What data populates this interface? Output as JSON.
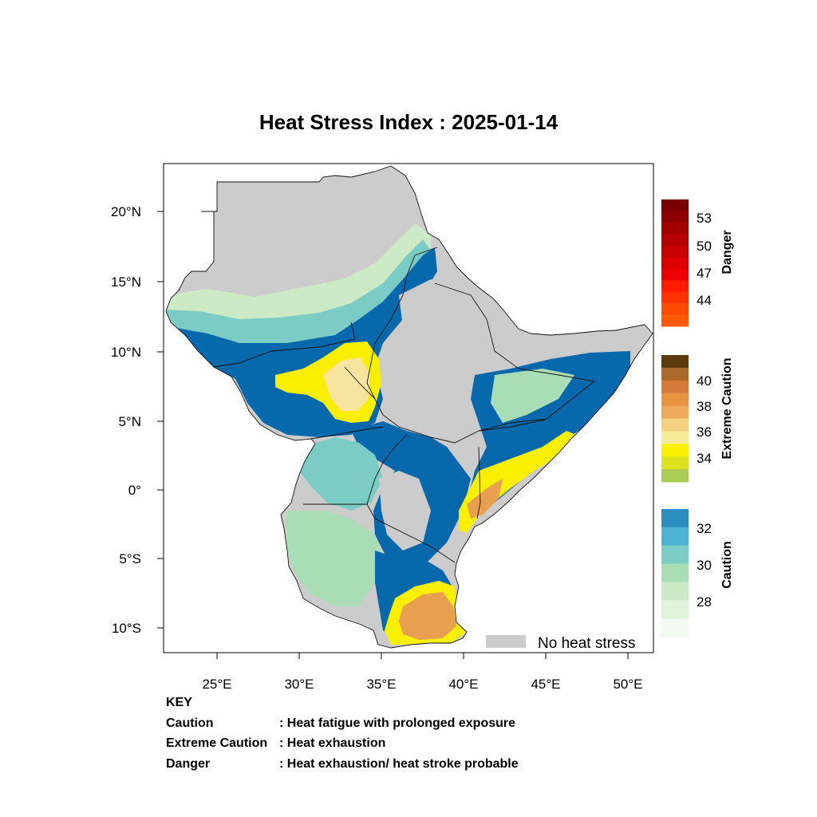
{
  "title": "Heat Stress Index : 2025-01-14",
  "axes": {
    "lon_ticks": [
      "25°E",
      "30°E",
      "35°E",
      "40°E",
      "45°E",
      "50°E"
    ],
    "lat_ticks": [
      "20°N",
      "15°N",
      "10°N",
      "5°N",
      "0°",
      "5°S",
      "10°S"
    ]
  },
  "no_stress_label": "No heat stress",
  "legend": {
    "danger": {
      "title": "Danger",
      "labels": [
        "53",
        "50",
        "47",
        "44"
      ],
      "colors": [
        "#7a0000",
        "#8e0000",
        "#a20000",
        "#b50000",
        "#c90000",
        "#dc0000",
        "#ee0000",
        "#ff1a00",
        "#ff3300",
        "#ff4a00",
        "#ff5a00"
      ]
    },
    "extreme": {
      "title": "Extreme Caution",
      "labels": [
        "40",
        "38",
        "36",
        "34"
      ],
      "colors": [
        "#5c3a0c",
        "#a8692a",
        "#d67a3a",
        "#e89244",
        "#eeaa5a",
        "#f5d280",
        "#f7ea9a",
        "#f9f000",
        "#dfe31e",
        "#aacc55"
      ]
    },
    "caution": {
      "title": "Caution",
      "labels": [
        "32",
        "30",
        "28"
      ],
      "colors": [
        "#2b8cbe",
        "#4eb3d3",
        "#7bccc4",
        "#a8ddb5",
        "#ccebc5",
        "#e0f3db",
        "#f2fbef"
      ]
    }
  },
  "palette": {
    "no_stress": "#cccccc",
    "ocean": "#ffffff",
    "deep_blue": "#0868ac",
    "mid_blue": "#2b8cbe",
    "light_blue": "#4eb3d3",
    "teal": "#7bccc4",
    "mint": "#a8ddb5",
    "pale_green": "#ccebc5",
    "yellow": "#f9f000",
    "cream": "#f7e4a0",
    "orange": "#e8a050",
    "dark_orange": "#d67a3a"
  },
  "key": {
    "heading": "KEY",
    "rows": [
      {
        "term": "Caution",
        "desc": ": Heat fatigue with prolonged exposure"
      },
      {
        "term": "Extreme Caution",
        "desc": " : Heat exhaustion"
      },
      {
        "term": "Danger",
        "desc": ": Heat exhaustion/ heat stroke probable"
      }
    ]
  }
}
